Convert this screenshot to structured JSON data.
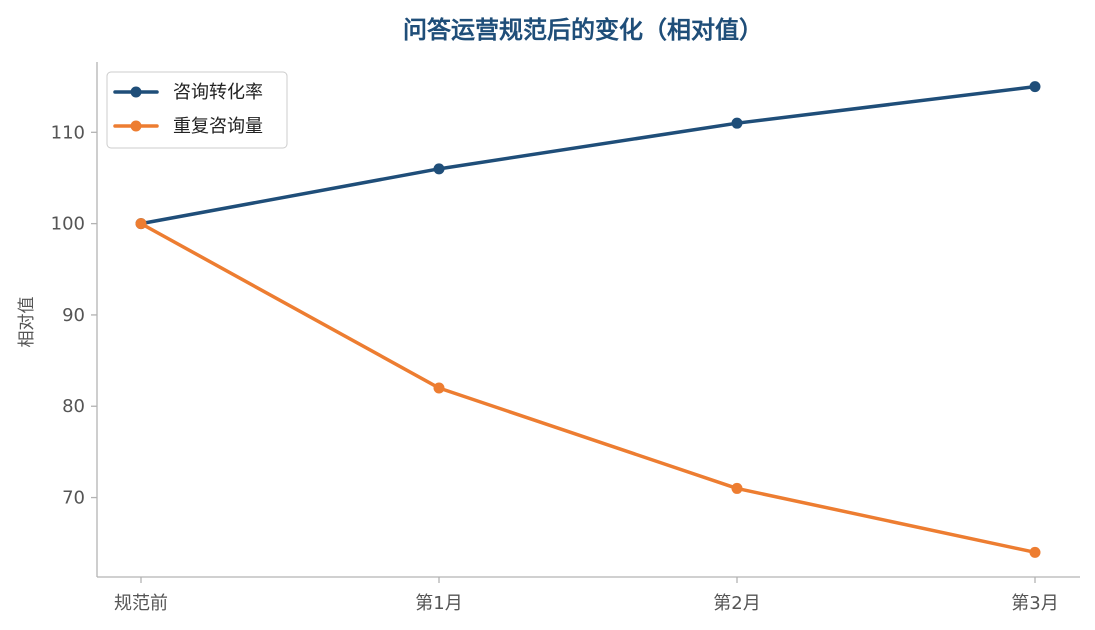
{
  "chart_data": {
    "type": "line",
    "title": "问答运营规范后的变化（相对值）",
    "xlabel": "",
    "ylabel": "相对值",
    "categories": [
      "规范前",
      "第1月",
      "第2月",
      "第3月"
    ],
    "series": [
      {
        "name": "咨询转化率",
        "values": [
          100,
          106,
          111,
          115
        ],
        "color": "#1f4e79"
      },
      {
        "name": "重复咨询量",
        "values": [
          100,
          82,
          71,
          64
        ],
        "color": "#ed7d31"
      }
    ],
    "ylim": [
      61.3,
      117.7
    ],
    "yticks": [
      70,
      80,
      90,
      100,
      110
    ],
    "grid": false,
    "legend_position": "top-left"
  }
}
